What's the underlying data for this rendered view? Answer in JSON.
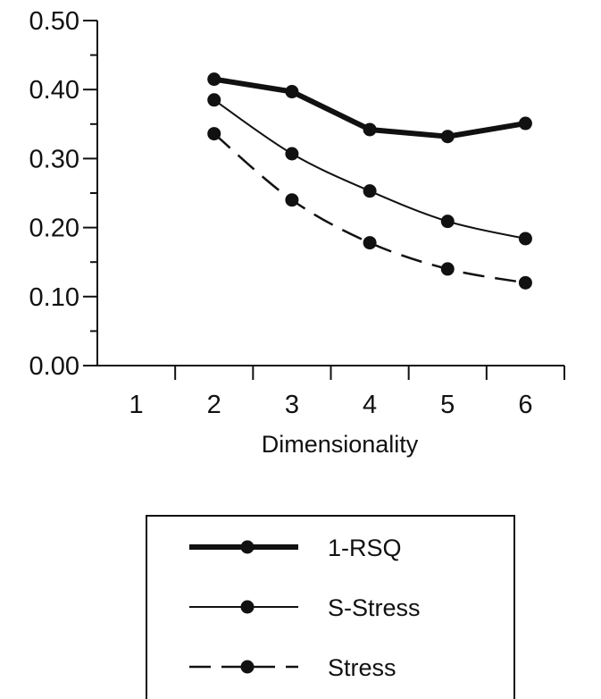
{
  "chart_data": {
    "type": "line",
    "xlabel": "Dimensionality",
    "ylabel": "",
    "x_ticks": [
      "1",
      "2",
      "3",
      "4",
      "5",
      "6"
    ],
    "y_ticks": [
      "0.00",
      "0.10",
      "0.20",
      "0.30",
      "0.40",
      "0.50"
    ],
    "xlim": [
      0.5,
      6.5
    ],
    "ylim": [
      0,
      0.5
    ],
    "grid": false,
    "legend_position": "bottom-center",
    "series": [
      {
        "name": "1-RSQ",
        "style": "thick-solid",
        "x": [
          2,
          3,
          4,
          5,
          6
        ],
        "y": [
          0.415,
          0.397,
          0.342,
          0.332,
          0.351
        ]
      },
      {
        "name": "S-Stress",
        "style": "thin-solid",
        "x": [
          2,
          3,
          4,
          5,
          6
        ],
        "y": [
          0.385,
          0.307,
          0.253,
          0.209,
          0.184
        ]
      },
      {
        "name": "Stress",
        "style": "dashed",
        "x": [
          2,
          3,
          4,
          5,
          6
        ],
        "y": [
          0.336,
          0.24,
          0.178,
          0.14,
          0.12
        ]
      }
    ]
  }
}
